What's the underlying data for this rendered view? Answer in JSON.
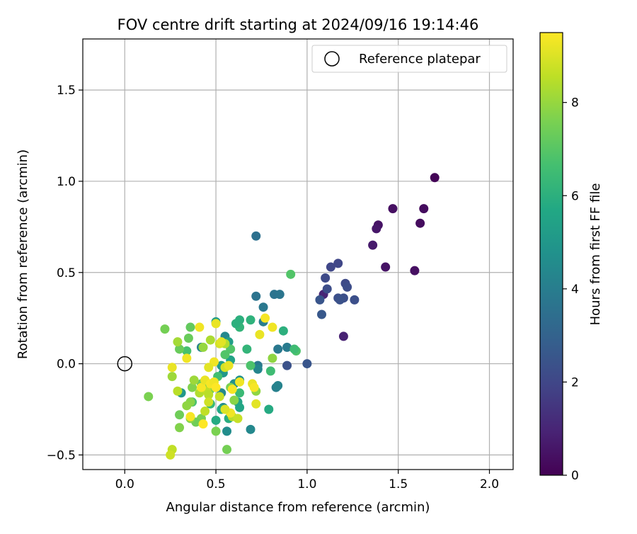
{
  "chart_data": {
    "type": "scatter",
    "title": "FOV centre drift starting at 2024/09/16 19:14:46",
    "xlabel": "Angular distance from reference (arcmin)",
    "ylabel": "Rotation from reference (arcmin)",
    "xlim": [
      -0.23,
      2.13
    ],
    "ylim": [
      -0.58,
      1.78
    ],
    "x_ticks": [
      0.0,
      0.5,
      1.0,
      1.5,
      2.0
    ],
    "x_tick_labels": [
      "0.0",
      "0.5",
      "1.0",
      "1.5",
      "2.0"
    ],
    "y_ticks": [
      -0.5,
      0.0,
      0.5,
      1.0,
      1.5
    ],
    "y_tick_labels": [
      "−0.5",
      "0.0",
      "0.5",
      "1.0",
      "1.5"
    ],
    "grid": true,
    "legend": {
      "position": "top-right",
      "entries": [
        {
          "label": "Reference platepar",
          "marker": "open-circle"
        }
      ]
    },
    "reference_point": {
      "x": 0.0,
      "y": 0.0
    },
    "colorbar": {
      "label": "Hours from first FF file",
      "colormap": "viridis",
      "range": [
        0,
        9.5
      ],
      "ticks": [
        0,
        2,
        4,
        6,
        8
      ],
      "tick_labels": [
        "0",
        "2",
        "4",
        "6",
        "8"
      ]
    },
    "points": [
      {
        "x": 1.7,
        "y": 1.02,
        "t": 0.1
      },
      {
        "x": 1.64,
        "y": 0.85,
        "t": 0.3
      },
      {
        "x": 1.47,
        "y": 0.85,
        "t": 0.4
      },
      {
        "x": 1.62,
        "y": 0.77,
        "t": 0.3
      },
      {
        "x": 1.39,
        "y": 0.76,
        "t": 0.5
      },
      {
        "x": 1.38,
        "y": 0.74,
        "t": 0.6
      },
      {
        "x": 1.36,
        "y": 0.65,
        "t": 0.7
      },
      {
        "x": 1.43,
        "y": 0.53,
        "t": 0.5
      },
      {
        "x": 1.59,
        "y": 0.51,
        "t": 0.4
      },
      {
        "x": 1.2,
        "y": 0.15,
        "t": 0.9
      },
      {
        "x": 1.09,
        "y": 0.38,
        "t": 1.0
      },
      {
        "x": 1.17,
        "y": 0.55,
        "t": 2.0
      },
      {
        "x": 1.13,
        "y": 0.53,
        "t": 2.0
      },
      {
        "x": 1.1,
        "y": 0.47,
        "t": 2.1
      },
      {
        "x": 1.21,
        "y": 0.44,
        "t": 2.1
      },
      {
        "x": 1.22,
        "y": 0.42,
        "t": 2.2
      },
      {
        "x": 1.11,
        "y": 0.41,
        "t": 2.2
      },
      {
        "x": 1.17,
        "y": 0.36,
        "t": 2.3
      },
      {
        "x": 1.2,
        "y": 0.36,
        "t": 2.3
      },
      {
        "x": 1.18,
        "y": 0.35,
        "t": 2.4
      },
      {
        "x": 1.26,
        "y": 0.35,
        "t": 2.3
      },
      {
        "x": 1.07,
        "y": 0.35,
        "t": 2.5
      },
      {
        "x": 1.08,
        "y": 0.27,
        "t": 2.6
      },
      {
        "x": 1.0,
        "y": 0.0,
        "t": 2.5
      },
      {
        "x": 0.89,
        "y": -0.01,
        "t": 2.4
      },
      {
        "x": 0.72,
        "y": 0.7,
        "t": 3.5
      },
      {
        "x": 0.72,
        "y": 0.37,
        "t": 3.6
      },
      {
        "x": 0.82,
        "y": 0.38,
        "t": 3.6
      },
      {
        "x": 0.85,
        "y": 0.38,
        "t": 3.7
      },
      {
        "x": 0.76,
        "y": 0.31,
        "t": 3.8
      },
      {
        "x": 0.76,
        "y": 0.23,
        "t": 4.0
      },
      {
        "x": 0.84,
        "y": 0.08,
        "t": 3.8
      },
      {
        "x": 0.89,
        "y": 0.09,
        "t": 3.9
      },
      {
        "x": 0.73,
        "y": -0.01,
        "t": 3.8
      },
      {
        "x": 0.73,
        "y": -0.03,
        "t": 4.3
      },
      {
        "x": 0.83,
        "y": -0.13,
        "t": 4.1
      },
      {
        "x": 0.84,
        "y": -0.12,
        "t": 4.2
      },
      {
        "x": 0.69,
        "y": -0.36,
        "t": 4.4
      },
      {
        "x": 0.56,
        "y": -0.37,
        "t": 4.6
      },
      {
        "x": 0.54,
        "y": -0.24,
        "t": 4.5
      },
      {
        "x": 0.53,
        "y": -0.16,
        "t": 4.4
      },
      {
        "x": 0.6,
        "y": -0.11,
        "t": 4.7
      },
      {
        "x": 0.63,
        "y": -0.09,
        "t": 4.8
      },
      {
        "x": 0.55,
        "y": 0.15,
        "t": 4.4
      },
      {
        "x": 0.42,
        "y": 0.09,
        "t": 4.2
      },
      {
        "x": 0.5,
        "y": 0.23,
        "t": 5.2
      },
      {
        "x": 0.57,
        "y": 0.12,
        "t": 5.3
      },
      {
        "x": 0.58,
        "y": 0.02,
        "t": 5.5
      },
      {
        "x": 0.53,
        "y": -0.01,
        "t": 5.3
      },
      {
        "x": 0.54,
        "y": -0.05,
        "t": 5.0
      },
      {
        "x": 0.62,
        "y": -0.21,
        "t": 5.5
      },
      {
        "x": 0.63,
        "y": -0.24,
        "t": 5.6
      },
      {
        "x": 0.53,
        "y": -0.25,
        "t": 5.7
      },
      {
        "x": 0.31,
        "y": -0.16,
        "t": 5.0
      },
      {
        "x": 0.5,
        "y": -0.31,
        "t": 5.8
      },
      {
        "x": 0.57,
        "y": -0.3,
        "t": 5.9
      },
      {
        "x": 0.79,
        "y": -0.25,
        "t": 5.8
      },
      {
        "x": 0.69,
        "y": 0.24,
        "t": 6.1
      },
      {
        "x": 0.63,
        "y": 0.24,
        "t": 6.0
      },
      {
        "x": 0.63,
        "y": 0.2,
        "t": 6.2
      },
      {
        "x": 0.61,
        "y": 0.22,
        "t": 6.0
      },
      {
        "x": 0.87,
        "y": 0.18,
        "t": 6.0
      },
      {
        "x": 0.67,
        "y": 0.08,
        "t": 6.2
      },
      {
        "x": 0.94,
        "y": 0.07,
        "t": 6.8
      },
      {
        "x": 0.93,
        "y": 0.08,
        "t": 6.5
      },
      {
        "x": 0.8,
        "y": -0.04,
        "t": 6.5
      },
      {
        "x": 0.69,
        "y": -0.01,
        "t": 6.8
      },
      {
        "x": 0.63,
        "y": -0.16,
        "t": 6.4
      },
      {
        "x": 0.47,
        "y": -0.22,
        "t": 6.3
      },
      {
        "x": 0.37,
        "y": -0.21,
        "t": 6.7
      },
      {
        "x": 0.51,
        "y": -0.07,
        "t": 6.6
      },
      {
        "x": 0.91,
        "y": 0.49,
        "t": 6.9
      },
      {
        "x": 0.55,
        "y": 0.05,
        "t": 6.9
      },
      {
        "x": 0.58,
        "y": 0.08,
        "t": 6.9
      },
      {
        "x": 0.34,
        "y": 0.07,
        "t": 6.7
      },
      {
        "x": 0.35,
        "y": 0.14,
        "t": 7.3
      },
      {
        "x": 0.36,
        "y": 0.2,
        "t": 7.2
      },
      {
        "x": 0.22,
        "y": 0.19,
        "t": 7.5
      },
      {
        "x": 0.3,
        "y": 0.08,
        "t": 7.3
      },
      {
        "x": 0.42,
        "y": -0.11,
        "t": 7.3
      },
      {
        "x": 0.45,
        "y": -0.13,
        "t": 7.5
      },
      {
        "x": 0.47,
        "y": -0.14,
        "t": 7.4
      },
      {
        "x": 0.56,
        "y": -0.47,
        "t": 7.5
      },
      {
        "x": 0.42,
        "y": -0.3,
        "t": 7.6
      },
      {
        "x": 0.39,
        "y": -0.32,
        "t": 7.4
      },
      {
        "x": 0.3,
        "y": -0.28,
        "t": 7.4
      },
      {
        "x": 0.13,
        "y": -0.18,
        "t": 7.6
      },
      {
        "x": 0.3,
        "y": -0.35,
        "t": 7.7
      },
      {
        "x": 0.36,
        "y": -0.3,
        "t": 7.8
      },
      {
        "x": 0.5,
        "y": -0.37,
        "t": 7.6
      },
      {
        "x": 0.36,
        "y": -0.21,
        "t": 7.8
      },
      {
        "x": 0.34,
        "y": -0.23,
        "t": 7.9
      },
      {
        "x": 0.37,
        "y": -0.13,
        "t": 7.7
      },
      {
        "x": 0.58,
        "y": -0.13,
        "t": 7.6
      },
      {
        "x": 0.6,
        "y": -0.2,
        "t": 7.8
      },
      {
        "x": 0.72,
        "y": -0.15,
        "t": 7.9
      },
      {
        "x": 0.43,
        "y": 0.09,
        "t": 8.0
      },
      {
        "x": 0.81,
        "y": 0.03,
        "t": 7.9
      },
      {
        "x": 0.38,
        "y": -0.09,
        "t": 8.1
      },
      {
        "x": 0.26,
        "y": -0.07,
        "t": 8.1
      },
      {
        "x": 0.29,
        "y": 0.12,
        "t": 8.2
      },
      {
        "x": 0.47,
        "y": 0.13,
        "t": 8.3
      },
      {
        "x": 0.55,
        "y": 0.11,
        "t": 8.4
      },
      {
        "x": 0.29,
        "y": -0.15,
        "t": 8.5
      },
      {
        "x": 0.41,
        "y": -0.16,
        "t": 8.4
      },
      {
        "x": 0.45,
        "y": -0.15,
        "t": 8.6
      },
      {
        "x": 0.46,
        "y": -0.17,
        "t": 8.5
      },
      {
        "x": 0.52,
        "y": -0.18,
        "t": 8.7
      },
      {
        "x": 0.44,
        "y": -0.26,
        "t": 8.6
      },
      {
        "x": 0.46,
        "y": -0.21,
        "t": 8.8
      },
      {
        "x": 0.59,
        "y": -0.29,
        "t": 8.5
      },
      {
        "x": 0.62,
        "y": -0.3,
        "t": 8.7
      },
      {
        "x": 0.26,
        "y": -0.47,
        "t": 8.6
      },
      {
        "x": 0.25,
        "y": -0.5,
        "t": 8.8
      },
      {
        "x": 0.55,
        "y": -0.02,
        "t": 8.9
      },
      {
        "x": 0.52,
        "y": 0.11,
        "t": 8.9
      },
      {
        "x": 0.53,
        "y": 0.12,
        "t": 9.1
      },
      {
        "x": 0.5,
        "y": 0.22,
        "t": 9.2
      },
      {
        "x": 0.41,
        "y": 0.2,
        "t": 9.3
      },
      {
        "x": 0.77,
        "y": 0.25,
        "t": 9.4
      },
      {
        "x": 0.81,
        "y": 0.2,
        "t": 9.3
      },
      {
        "x": 0.74,
        "y": 0.16,
        "t": 9.2
      },
      {
        "x": 0.49,
        "y": 0.01,
        "t": 9.3
      },
      {
        "x": 0.46,
        "y": -0.02,
        "t": 9.1
      },
      {
        "x": 0.26,
        "y": -0.02,
        "t": 9.2
      },
      {
        "x": 0.34,
        "y": 0.03,
        "t": 9.3
      },
      {
        "x": 0.42,
        "y": -0.13,
        "t": 9.4
      },
      {
        "x": 0.44,
        "y": -0.09,
        "t": 9.2
      },
      {
        "x": 0.47,
        "y": -0.11,
        "t": 9.4
      },
      {
        "x": 0.49,
        "y": -0.1,
        "t": 9.3
      },
      {
        "x": 0.5,
        "y": -0.13,
        "t": 9.5
      },
      {
        "x": 0.57,
        "y": -0.01,
        "t": 9.2
      },
      {
        "x": 0.59,
        "y": -0.14,
        "t": 9.4
      },
      {
        "x": 0.63,
        "y": -0.1,
        "t": 9.3
      },
      {
        "x": 0.7,
        "y": -0.11,
        "t": 9.2
      },
      {
        "x": 0.71,
        "y": -0.13,
        "t": 9.4
      },
      {
        "x": 0.72,
        "y": -0.22,
        "t": 9.1
      },
      {
        "x": 0.58,
        "y": -0.27,
        "t": 9.3
      },
      {
        "x": 0.43,
        "y": -0.33,
        "t": 9.5
      },
      {
        "x": 0.36,
        "y": -0.29,
        "t": 9.4
      },
      {
        "x": 0.55,
        "y": -0.25,
        "t": 9.0
      }
    ]
  }
}
